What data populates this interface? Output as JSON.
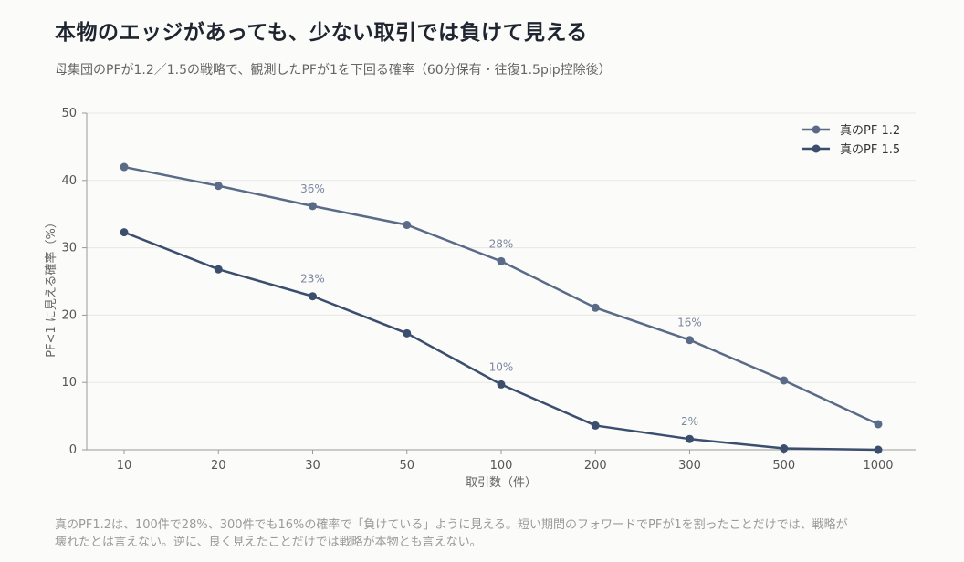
{
  "title": "本物のエッジがあっても、少ない取引では負けて見える",
  "subtitle": "母集団のPFが1.2／1.5の戦略で、観測したPFが1を下回る確率（60分保有・往復1.5pip控除後）",
  "footnote": "真のPF1.2は、100件で28%、300件でも16%の確率で「負けている」ように見える。短い期間のフォワードでPFが1を割ったことだけでは、戦略が壊れたとは言えない。逆に、良く見えたことだけでは戦略が本物とも言えない。",
  "chart_data": {
    "type": "line",
    "title": "本物のエッジがあっても、少ない取引では負けて見える",
    "subtitle": "母集団のPFが1.2／1.5の戦略で、観測したPFが1を下回る確率（60分保有・往復1.5pip控除後）",
    "xlabel": "取引数（件）",
    "ylabel": "PF<1 に見える確率（%）",
    "categories": [
      "10",
      "20",
      "30",
      "50",
      "100",
      "200",
      "300",
      "500",
      "1000"
    ],
    "ylim": [
      0,
      50
    ],
    "yticks": [
      0,
      10,
      20,
      30,
      40,
      50
    ],
    "grid": true,
    "legend": "top-right",
    "series": [
      {
        "name": "真のPF 1.2",
        "color": "#5a6b88",
        "values": [
          42.0,
          39.2,
          36.2,
          33.4,
          28.0,
          21.1,
          16.3,
          10.3,
          3.8
        ],
        "labels": [
          {
            "index": 2,
            "text": "36%"
          },
          {
            "index": 4,
            "text": "28%"
          },
          {
            "index": 6,
            "text": "16%"
          }
        ]
      },
      {
        "name": "真のPF 1.5",
        "color": "#3b4e6e",
        "values": [
          32.3,
          26.8,
          22.8,
          17.3,
          9.7,
          3.6,
          1.6,
          0.2,
          0.0
        ],
        "labels": [
          {
            "index": 2,
            "text": "23%"
          },
          {
            "index": 4,
            "text": "10%"
          },
          {
            "index": 6,
            "text": "2%"
          }
        ]
      }
    ]
  }
}
